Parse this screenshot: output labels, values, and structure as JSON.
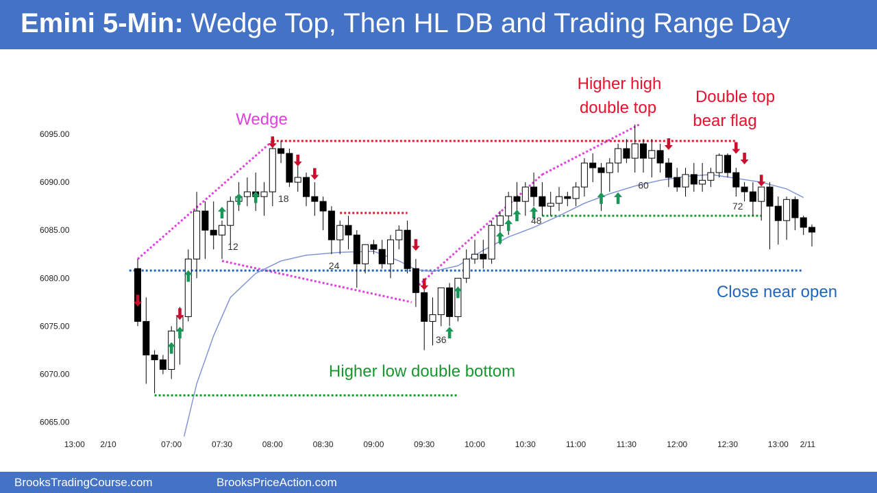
{
  "header": {
    "title_bold": "Emini 5-Min:",
    "title_rest": " Wedge Top, Then HL DB and Trading Range Day",
    "background": "#4472c4"
  },
  "footer": {
    "left_text": "BrooksTradingCourse.com",
    "right_text": "BrooksPriceAction.com"
  },
  "colors": {
    "bull_body": "#ffffff",
    "bear_body": "#000000",
    "ema": "#7b8fd6",
    "magenta": "#e040e0",
    "red": "#e8112d",
    "green": "#19962e",
    "blue": "#2266bb",
    "arrow_up": "#1a9658",
    "arrow_down": "#c8102e"
  },
  "chart_data": {
    "type": "candlestick",
    "title": "Emini 5-Min: Wedge Top, Then HL DB and Trading Range Day",
    "y_ticks": [
      "6065.00",
      "6070.00",
      "6075.00",
      "6080.00",
      "6085.00",
      "6090.00",
      "6095.00"
    ],
    "y_tick_values": [
      6065,
      6070,
      6075,
      6080,
      6085,
      6090,
      6095
    ],
    "ylim": [
      6062.5,
      6098.5
    ],
    "x_ticks": [
      {
        "label": "13:00",
        "bar": -7.5
      },
      {
        "label": "2/10",
        "bar": -3.5
      },
      {
        "label": "07:00",
        "bar": 4
      },
      {
        "label": "07:30",
        "bar": 10
      },
      {
        "label": "08:00",
        "bar": 16
      },
      {
        "label": "08:30",
        "bar": 22
      },
      {
        "label": "09:00",
        "bar": 28
      },
      {
        "label": "09:30",
        "bar": 34
      },
      {
        "label": "10:00",
        "bar": 40
      },
      {
        "label": "10:30",
        "bar": 46
      },
      {
        "label": "11:00",
        "bar": 52
      },
      {
        "label": "11:30",
        "bar": 58
      },
      {
        "label": "12:00",
        "bar": 64
      },
      {
        "label": "12:30",
        "bar": 70
      },
      {
        "label": "13:00",
        "bar": 76
      },
      {
        "label": "2/11",
        "bar": 79.5
      }
    ],
    "ohlc": [
      [
        6081,
        6082,
        6075,
        6075.5
      ],
      [
        6075.5,
        6078,
        6069,
        6072
      ],
      [
        6072,
        6072.5,
        6068,
        6071.5
      ],
      [
        6071.5,
        6072,
        6070,
        6070.5
      ],
      [
        6070.5,
        6075,
        6069.5,
        6074.5
      ],
      [
        6074.5,
        6077,
        6071,
        6076
      ],
      [
        6076,
        6083,
        6075.5,
        6082
      ],
      [
        6082,
        6089,
        6080,
        6087
      ],
      [
        6087,
        6088,
        6082,
        6085
      ],
      [
        6085,
        6088,
        6083,
        6084.5
      ],
      [
        6084.5,
        6086,
        6082,
        6085.5
      ],
      [
        6085.5,
        6088.5,
        6083.5,
        6088
      ],
      [
        6088,
        6090,
        6087,
        6088.5
      ],
      [
        6088.5,
        6090.5,
        6087.5,
        6089
      ],
      [
        6089,
        6091,
        6087,
        6088.5
      ],
      [
        6088.5,
        6090,
        6086.5,
        6089
      ],
      [
        6089,
        6094.5,
        6087.5,
        6093.5
      ],
      [
        6093.5,
        6094.3,
        6092,
        6093
      ],
      [
        6093,
        6093.5,
        6089.5,
        6090
      ],
      [
        6090,
        6092,
        6089,
        6090.5
      ],
      [
        6090.5,
        6091,
        6087.5,
        6088.5
      ],
      [
        6088.5,
        6090,
        6086.5,
        6088
      ],
      [
        6088,
        6088.5,
        6085,
        6087
      ],
      [
        6087,
        6087.5,
        6082.5,
        6084
      ],
      [
        6084,
        6086,
        6082.5,
        6085.5
      ],
      [
        6085.5,
        6086.5,
        6083,
        6084.5
      ],
      [
        6084.5,
        6085,
        6079,
        6081.5
      ],
      [
        6081.5,
        6083.5,
        6080.5,
        6083.5
      ],
      [
        6083.5,
        6084,
        6082.5,
        6083
      ],
      [
        6083,
        6084,
        6081,
        6081.5
      ],
      [
        6081.5,
        6084.5,
        6080,
        6084
      ],
      [
        6084,
        6085.5,
        6083,
        6085
      ],
      [
        6085,
        6086,
        6080.5,
        6081
      ],
      [
        6081,
        6082,
        6077,
        6078.5
      ],
      [
        6078.5,
        6079,
        6072.5,
        6075.5
      ],
      [
        6075.5,
        6078,
        6073,
        6076.2
      ],
      [
        6076.2,
        6079,
        6075,
        6079
      ],
      [
        6079,
        6079.5,
        6075,
        6076
      ],
      [
        6076,
        6080,
        6075.5,
        6080
      ],
      [
        6080,
        6083,
        6079.5,
        6082
      ],
      [
        6082,
        6084,
        6081.5,
        6082.5
      ],
      [
        6082.5,
        6084,
        6081,
        6082
      ],
      [
        6082,
        6086,
        6081.5,
        6085.5
      ],
      [
        6085.5,
        6087,
        6083.5,
        6086.5
      ],
      [
        6086.5,
        6089,
        6084.5,
        6088.5
      ],
      [
        6088.5,
        6090,
        6087,
        6088
      ],
      [
        6088,
        6090,
        6086.5,
        6089.5
      ],
      [
        6089.5,
        6091,
        6087.5,
        6088.5
      ],
      [
        6088.5,
        6090,
        6086.5,
        6087.5
      ],
      [
        6087.5,
        6089,
        6086.5,
        6087.8
      ],
      [
        6087.8,
        6089.5,
        6087,
        6088.5
      ],
      [
        6088.5,
        6089,
        6087.5,
        6088.3
      ],
      [
        6088.3,
        6090,
        6087.5,
        6089.5
      ],
      [
        6089.5,
        6092.5,
        6088.5,
        6092
      ],
      [
        6092,
        6093,
        6090,
        6091.5
      ],
      [
        6091.5,
        6092,
        6087,
        6091
      ],
      [
        6091,
        6092.5,
        6089,
        6092
      ],
      [
        6092,
        6094,
        6091,
        6093.5
      ],
      [
        6093.5,
        6094.5,
        6092,
        6092.5
      ],
      [
        6092.5,
        6096,
        6091,
        6094
      ],
      [
        6094,
        6094.5,
        6091,
        6092.5
      ],
      [
        6092.5,
        6094.5,
        6090.5,
        6093.3
      ],
      [
        6093.3,
        6094,
        6091,
        6092
      ],
      [
        6092,
        6092.5,
        6089.5,
        6090.5
      ],
      [
        6090.5,
        6091.5,
        6089,
        6089.5
      ],
      [
        6089.5,
        6091.5,
        6088.5,
        6090.8
      ],
      [
        6090.8,
        6092,
        6089,
        6089.8
      ],
      [
        6089.8,
        6092,
        6089,
        6090.2
      ],
      [
        6090.2,
        6091.5,
        6089.5,
        6091
      ],
      [
        6091,
        6093,
        6090.5,
        6092.8
      ],
      [
        6092.8,
        6093,
        6090.5,
        6091
      ],
      [
        6091,
        6091.5,
        6088.5,
        6089.5
      ],
      [
        6089.5,
        6090,
        6088,
        6089
      ],
      [
        6089,
        6090,
        6086.5,
        6088
      ],
      [
        6088,
        6089.5,
        6086,
        6089.5
      ],
      [
        6089.5,
        6090,
        6083,
        6087.5
      ],
      [
        6087.5,
        6088.5,
        6083.5,
        6086
      ],
      [
        6086,
        6088.5,
        6084,
        6088.2
      ],
      [
        6088.2,
        6088.5,
        6085,
        6086.3
      ],
      [
        6086.3,
        6086.5,
        6084.5,
        6085.3
      ],
      [
        6085.3,
        6085.6,
        6083.3,
        6084.8
      ]
    ],
    "ema_x": [
      5.5,
      7,
      9,
      11,
      14,
      17,
      20,
      24,
      28,
      31,
      33,
      35,
      38,
      41,
      44,
      47,
      50,
      53,
      56,
      59,
      62,
      65,
      68,
      71,
      74,
      77,
      79
    ],
    "ema_y": [
      6063.5,
      6069,
      6074,
      6078,
      6080.5,
      6081.8,
      6082.4,
      6082.7,
      6082.8,
      6081.8,
      6080.9,
      6080.7,
      6081.3,
      6082.9,
      6084.3,
      6085.3,
      6086.5,
      6087.8,
      6088.8,
      6089.6,
      6090.2,
      6090.6,
      6090.8,
      6090.4,
      6090.0,
      6089.3,
      6088.4
    ],
    "bar_numbers": [
      {
        "label": "12",
        "bar": 11.3,
        "price": 6083.3
      },
      {
        "label": "18",
        "bar": 17.3,
        "price": 6088.3
      },
      {
        "label": "24",
        "bar": 23.3,
        "price": 6081.3
      },
      {
        "label": "36",
        "bar": 36.0,
        "price": 6073.6
      },
      {
        "label": "48",
        "bar": 47.3,
        "price": 6086.0
      },
      {
        "label": "60",
        "bar": 60.0,
        "price": 6089.7
      },
      {
        "label": "72",
        "bar": 71.2,
        "price": 6087.5
      }
    ],
    "up_arrow_bars": [
      6,
      5,
      4,
      10,
      12,
      14,
      37,
      38,
      43,
      44,
      45,
      47,
      55,
      57
    ],
    "up_arrow_prices": [
      6080.2,
      6074.3,
      6072.7,
      6086.8,
      6088.2,
      6088.4,
      6074.3,
      6078.5,
      6084.2,
      6085.5,
      6086.5,
      6086.8,
      6088.3,
      6088.3
    ],
    "down_arrow_bars": [
      0,
      5,
      16,
      19,
      21,
      33,
      34,
      63,
      71,
      72,
      74
    ],
    "down_arrow_prices": [
      6077.7,
      6076.3,
      6094.2,
      6092.3,
      6090.9,
      6083.5,
      6079.4,
      6094.0,
      6093.6,
      6092.5,
      6090.2
    ],
    "annotations": {
      "wedge_label": "Wedge",
      "hh_double_top": [
        "Higher high",
        "double top"
      ],
      "double_top_bear_flag": [
        "Double top",
        "bear flag"
      ],
      "hl_double_bottom": "Higher low double bottom",
      "close_near_open": "Close near open"
    },
    "lines": {
      "wedge_top": {
        "from": [
          0,
          6082
        ],
        "to": [
          16,
          6094.3
        ]
      },
      "wedge_lower": {
        "from": [
          10,
          6081.8
        ],
        "to": [
          32.5,
          6077.5
        ]
      },
      "hh_trend": {
        "from": [
          33,
          6079
        ],
        "to": [
          48,
          6090.8
        ],
        "to2": [
          59.5,
          6096
        ]
      },
      "double_top_line": {
        "from": [
          16,
          6094.3
        ],
        "to": [
          71,
          6094.3
        ]
      },
      "resistance_short": {
        "from": [
          24,
          6086.8
        ],
        "to": [
          32,
          6086.8
        ]
      },
      "double_bottom_line": {
        "from": [
          2,
          6067.8
        ],
        "to": [
          38,
          6067.8
        ]
      },
      "support_line": {
        "from": [
          48,
          6086.5
        ],
        "to": [
          74,
          6086.5
        ]
      },
      "open_line": {
        "from": [
          -1,
          6080.8
        ],
        "to": [
          79,
          6080.8
        ]
      }
    }
  }
}
